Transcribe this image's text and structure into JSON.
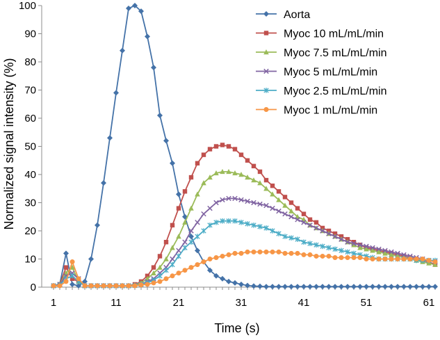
{
  "chart_data": {
    "type": "line",
    "title": "",
    "xlabel": "Time (s)",
    "ylabel": "Normalized signal intensity (%)",
    "xlim": [
      1,
      62
    ],
    "ylim": [
      0,
      100
    ],
    "x_ticks": [
      "1",
      "11",
      "21",
      "31",
      "41",
      "51",
      "61"
    ],
    "y_ticks": [
      "0",
      "10",
      "20",
      "30",
      "40",
      "50",
      "60",
      "70",
      "80",
      "90",
      "100"
    ],
    "grid": false,
    "legend_position": "right-top",
    "x": [
      1,
      2,
      3,
      4,
      5,
      6,
      7,
      8,
      9,
      10,
      11,
      12,
      13,
      14,
      15,
      16,
      17,
      18,
      19,
      20,
      21,
      22,
      23,
      24,
      25,
      26,
      27,
      28,
      29,
      30,
      31,
      32,
      33,
      34,
      35,
      36,
      37,
      38,
      39,
      40,
      41,
      42,
      43,
      44,
      45,
      46,
      47,
      48,
      49,
      50,
      51,
      52,
      53,
      54,
      55,
      56,
      57,
      58,
      59,
      60,
      61,
      62
    ],
    "series": [
      {
        "name": "Aorta",
        "color": "#4472A8",
        "marker": "diamond",
        "values": [
          0.5,
          1,
          12,
          1,
          0.5,
          2,
          10,
          22,
          37,
          53,
          69,
          84,
          99,
          100,
          98,
          89,
          78,
          61,
          52,
          44,
          33,
          25,
          18,
          13,
          9,
          6,
          4,
          3,
          2,
          1.5,
          1,
          0.6,
          0.4,
          0.3,
          0.2,
          0.2,
          0.2,
          0.2,
          0.2,
          0.2,
          0.2,
          0.2,
          0.2,
          0.2,
          0.2,
          0.2,
          0.2,
          0.2,
          0.2,
          0.2,
          0.2,
          0.2,
          0.2,
          0.2,
          0.2,
          0.2,
          0.2,
          0.2,
          0.2,
          0.2,
          0.2,
          0.2
        ]
      },
      {
        "name": "Myoc 10 mL/mL/min",
        "color": "#C0504D",
        "marker": "square",
        "values": [
          0.5,
          1,
          7,
          3,
          2,
          0.5,
          0.5,
          0.5,
          0.5,
          0.5,
          0.5,
          0.5,
          0.5,
          1,
          2,
          4,
          7,
          11,
          16,
          22,
          28,
          34,
          39,
          44,
          47,
          49,
          50,
          50.5,
          50,
          49,
          47,
          45,
          43,
          41,
          38,
          36,
          34,
          32,
          30,
          28,
          26,
          24,
          23,
          21,
          20,
          19,
          18,
          17,
          16,
          15,
          14,
          13.5,
          13,
          12.5,
          12,
          11.5,
          11,
          10.5,
          10,
          9.5,
          9,
          8
        ]
      },
      {
        "name": "Myoc 7.5 mL/mL/min",
        "color": "#9BBB59",
        "marker": "triangle",
        "values": [
          0.5,
          1,
          5,
          7,
          2,
          0.5,
          0.5,
          0.5,
          0.5,
          0.5,
          0.5,
          0.5,
          0.5,
          0.8,
          1.5,
          3,
          5,
          7,
          10,
          14,
          18,
          23,
          28,
          33,
          37,
          39,
          40.5,
          41,
          41,
          40.5,
          40,
          39,
          38,
          37,
          35,
          33,
          31,
          29,
          27,
          25,
          24,
          22,
          21,
          20,
          19,
          18,
          17,
          16,
          15,
          14,
          13.5,
          13,
          12.5,
          12,
          11.5,
          11,
          10.5,
          10,
          9.5,
          9,
          8.5,
          8
        ]
      },
      {
        "name": "Myoc 5 mL/mL/min",
        "color": "#8064A2",
        "marker": "x",
        "values": [
          0.5,
          1,
          4,
          5,
          3,
          0.5,
          0.5,
          0.5,
          0.5,
          0.5,
          0.5,
          0.5,
          0.5,
          0.6,
          1,
          2,
          3,
          5,
          7,
          10,
          13,
          16,
          20,
          23,
          26,
          28,
          30,
          31,
          31.5,
          31.5,
          31,
          30.5,
          30,
          29.5,
          29,
          28,
          27,
          26,
          25,
          24,
          23,
          22,
          21,
          20,
          19,
          18,
          17,
          16,
          15.5,
          15,
          14.5,
          14,
          13.5,
          13,
          12.5,
          12,
          11.5,
          11,
          10.5,
          10,
          9.5,
          9
        ]
      },
      {
        "name": "Myoc 2.5 mL/mL/min",
        "color": "#4BACC6",
        "marker": "star",
        "values": [
          0.5,
          0.8,
          3,
          4,
          2,
          0.5,
          0.5,
          0.5,
          0.5,
          0.5,
          0.5,
          0.5,
          0.5,
          0.6,
          1,
          1.5,
          2.5,
          4,
          6,
          8,
          11,
          14,
          16,
          18,
          20,
          22,
          23,
          23.5,
          23.5,
          23.5,
          23,
          22.5,
          22,
          21.5,
          21,
          20,
          19,
          18,
          17.5,
          17,
          16,
          15.5,
          15,
          14.5,
          14,
          13.5,
          13,
          12.5,
          12,
          11.5,
          11,
          10.5,
          10,
          10,
          10,
          10,
          10,
          10,
          9.5,
          9.5,
          9.5,
          9.5
        ]
      },
      {
        "name": "Myoc 1 mL/mL/min",
        "color": "#F79646",
        "marker": "circle",
        "values": [
          0.5,
          0.5,
          2,
          9,
          3,
          0.5,
          0.5,
          0.5,
          0.5,
          0.5,
          0.5,
          0.5,
          0.5,
          0.5,
          0.8,
          1,
          1.5,
          2,
          3,
          4,
          5,
          6,
          7,
          8,
          9,
          10,
          10.5,
          11,
          11.5,
          12,
          12,
          12.5,
          12.5,
          12.5,
          12.5,
          12.5,
          12.5,
          12,
          12,
          12,
          11.5,
          11.5,
          11,
          11,
          11,
          10.5,
          10.5,
          10.5,
          10.5,
          10.5,
          10,
          10,
          10,
          10,
          10,
          10,
          10,
          10,
          10,
          10,
          9.5,
          9
        ]
      }
    ]
  }
}
